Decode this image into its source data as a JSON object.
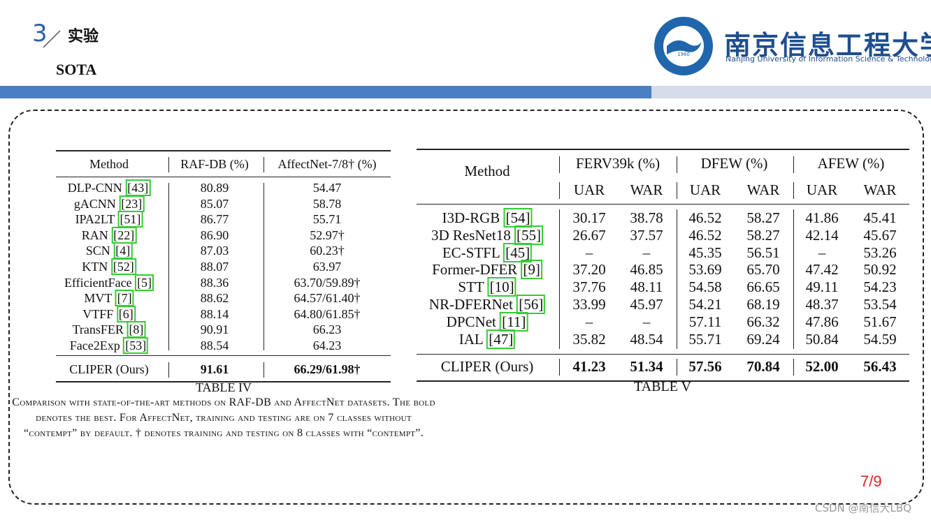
{
  "header": {
    "section_number": "3",
    "section_title": "实验",
    "subtitle": "SOTA",
    "logo_year": "1960",
    "university_cn": "南京信息工程大学",
    "university_en": "Nanjing University of Information Science & Technology"
  },
  "table4": {
    "columns": [
      "Method",
      "RAF-DB (%)",
      "AffectNet-7/8† (%)"
    ],
    "rows": [
      [
        "DLP-CNN",
        "[43]",
        "80.89",
        "54.47"
      ],
      [
        "gACNN",
        "[23]",
        "85.07",
        "58.78"
      ],
      [
        "IPA2LT",
        "[51]",
        "86.77",
        "55.71"
      ],
      [
        "RAN",
        "[22]",
        "86.90",
        "52.97†"
      ],
      [
        "SCN",
        "[4]",
        "87.03",
        "60.23†"
      ],
      [
        "KTN",
        "[52]",
        "88.07",
        "63.97"
      ],
      [
        "EfficientFace",
        "[5]",
        "88.36",
        "63.70/59.89†"
      ],
      [
        "MVT",
        "[7]",
        "88.62",
        "64.57/61.40†"
      ],
      [
        "VTFF",
        "[6]",
        "88.14",
        "64.80/61.85†"
      ],
      [
        "TransFER",
        "[8]",
        "90.91",
        "66.23"
      ],
      [
        "Face2Exp",
        "[53]",
        "88.54",
        "64.23"
      ]
    ],
    "ours": [
      "CLIPER (Ours)",
      "91.61",
      "66.29/61.98†"
    ],
    "label": "TABLE IV",
    "caption": "Comparison with state-of-the-art methods on RAF-DB and AffectNet datasets. The bold denotes the best. For AffectNet, training and testing are on 7 classes without “contempt” by default. † denotes training and testing on 8 classes with “contempt”."
  },
  "table5": {
    "method_header": "Method",
    "groups": [
      "FERV39k (%)",
      "DFEW (%)",
      "AFEW (%)"
    ],
    "subcolumns": [
      "UAR",
      "WAR",
      "UAR",
      "WAR",
      "UAR",
      "WAR"
    ],
    "rows": [
      [
        "I3D-RGB",
        "[54]",
        "30.17",
        "38.78",
        "46.52",
        "58.27",
        "41.86",
        "45.41"
      ],
      [
        "3D ResNet18",
        "[55]",
        "26.67",
        "37.57",
        "46.52",
        "58.27",
        "42.14",
        "45.67"
      ],
      [
        "EC-STFL",
        "[45]",
        "–",
        "–",
        "45.35",
        "56.51",
        "–",
        "53.26"
      ],
      [
        "Former-DFER",
        "[9]",
        "37.20",
        "46.85",
        "53.69",
        "65.70",
        "47.42",
        "50.92"
      ],
      [
        "STT",
        "[10]",
        "37.76",
        "48.11",
        "54.58",
        "66.65",
        "49.11",
        "54.23"
      ],
      [
        "NR-DFERNet",
        "[56]",
        "33.99",
        "45.97",
        "54.21",
        "68.19",
        "48.37",
        "53.54"
      ],
      [
        "DPCNet",
        "[11]",
        "–",
        "–",
        "57.11",
        "66.32",
        "47.86",
        "51.67"
      ],
      [
        "IAL",
        "[47]",
        "35.82",
        "48.54",
        "55.71",
        "69.24",
        "50.84",
        "54.59"
      ]
    ],
    "ours": [
      "CLIPER (Ours)",
      "41.23",
      "51.34",
      "57.56",
      "70.84",
      "52.00",
      "56.43"
    ],
    "label": "TABLE V"
  },
  "footer": {
    "page": "7/9",
    "watermark": "CSDN @南信大LBQ"
  }
}
